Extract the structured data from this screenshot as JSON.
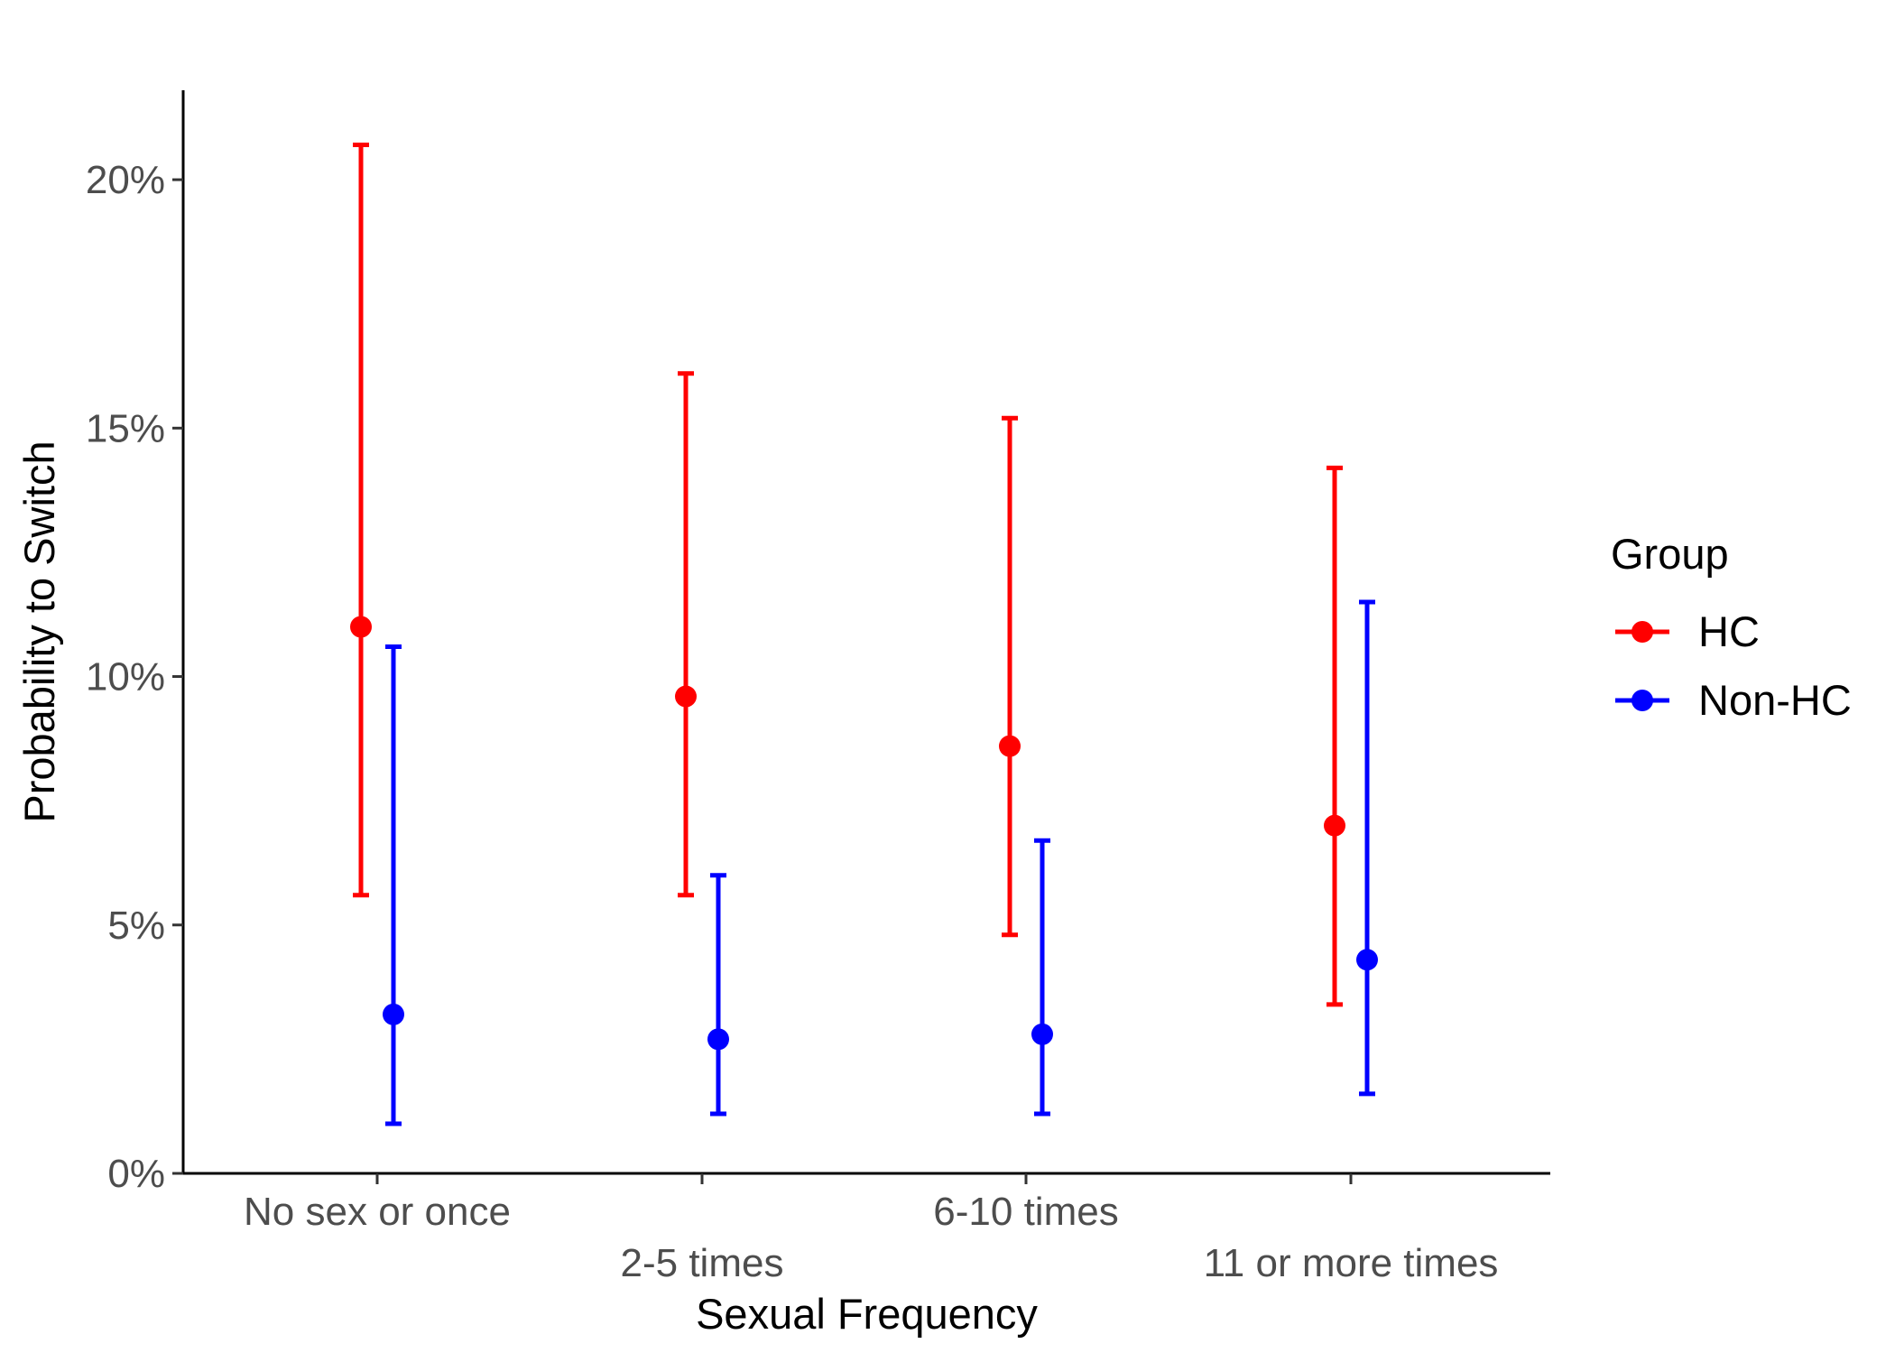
{
  "chart_data": {
    "type": "scatter",
    "subtype": "point-with-error-bars",
    "title": "",
    "xlabel": "Sexual Frequency",
    "ylabel": "Probability to Switch",
    "categories": [
      "No sex or once",
      "2-5 times",
      "6-10 times",
      "11 or more times"
    ],
    "ylim": [
      0,
      21.8
    ],
    "yticks": [
      0,
      5,
      10,
      15,
      20
    ],
    "ytick_labels": [
      "0%",
      "5%",
      "10%",
      "15%",
      "20%"
    ],
    "grid": false,
    "legend": {
      "title": "Group",
      "placement": "right"
    },
    "series": [
      {
        "name": "HC",
        "color": "#ff0000",
        "values": [
          11.0,
          9.6,
          8.6,
          7.0
        ],
        "lower": [
          5.6,
          5.6,
          4.8,
          3.4
        ],
        "upper": [
          20.7,
          16.1,
          15.2,
          14.2
        ]
      },
      {
        "name": "Non-HC",
        "color": "#0000ff",
        "values": [
          3.2,
          2.7,
          2.8,
          4.3
        ],
        "lower": [
          1.0,
          1.2,
          1.2,
          1.6
        ],
        "upper": [
          10.6,
          6.0,
          6.7,
          11.5
        ]
      }
    ]
  }
}
